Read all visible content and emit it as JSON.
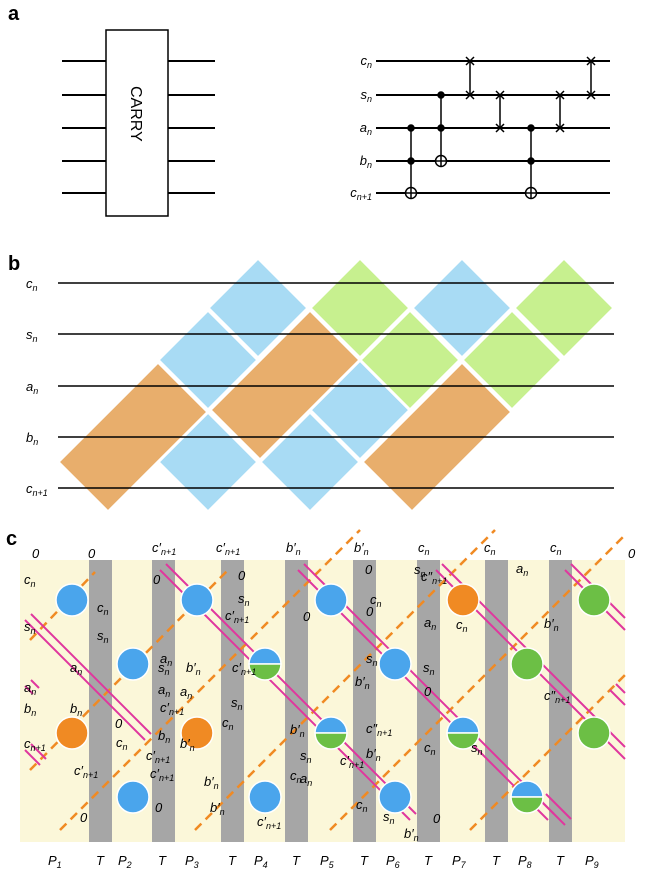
{
  "panels": {
    "a": {
      "label": "a",
      "gate_text": "CARRY",
      "wires": [
        {
          "main": "c",
          "sub": "n"
        },
        {
          "main": "s",
          "sub": "n"
        },
        {
          "main": "a",
          "sub": "n"
        },
        {
          "main": "b",
          "sub": "n"
        },
        {
          "main": "c",
          "sub": "n+1"
        }
      ]
    },
    "b": {
      "label": "b",
      "wires": [
        {
          "main": "c",
          "sub": "n"
        },
        {
          "main": "s",
          "sub": "n"
        },
        {
          "main": "a",
          "sub": "n"
        },
        {
          "main": "b",
          "sub": "n"
        },
        {
          "main": "c",
          "sub": "n+1"
        }
      ]
    },
    "c": {
      "label": "c",
      "stage_labels": [
        {
          "main": "P",
          "sub": "1"
        },
        {
          "main": "T",
          "sub": ""
        },
        {
          "main": "P",
          "sub": "2"
        },
        {
          "main": "T",
          "sub": ""
        },
        {
          "main": "P",
          "sub": "3"
        },
        {
          "main": "T",
          "sub": ""
        },
        {
          "main": "P",
          "sub": "4"
        },
        {
          "main": "T",
          "sub": ""
        },
        {
          "main": "P",
          "sub": "5"
        },
        {
          "main": "T",
          "sub": ""
        },
        {
          "main": "P",
          "sub": "6"
        },
        {
          "main": "T",
          "sub": ""
        },
        {
          "main": "P",
          "sub": "7"
        },
        {
          "main": "T",
          "sub": ""
        },
        {
          "main": "P",
          "sub": "8"
        },
        {
          "main": "T",
          "sub": ""
        },
        {
          "main": "P",
          "sub": "9"
        }
      ],
      "labels": [
        {
          "main": "0",
          "sub": ""
        },
        {
          "main": "0",
          "sub": ""
        },
        {
          "main": "c′",
          "sub": "n+1"
        },
        {
          "main": "c′",
          "sub": "n+1"
        },
        {
          "main": "b′",
          "sub": "n"
        },
        {
          "main": "b′",
          "sub": "n"
        },
        {
          "main": "c",
          "sub": "n"
        },
        {
          "main": "c",
          "sub": "n"
        },
        {
          "main": "c",
          "sub": "n"
        },
        {
          "main": "0",
          "sub": ""
        },
        {
          "main": "c",
          "sub": "n"
        },
        {
          "main": "s",
          "sub": "n"
        },
        {
          "main": "a",
          "sub": "n"
        },
        {
          "main": "b",
          "sub": "n"
        },
        {
          "main": "c",
          "sub": "n+1"
        },
        {
          "main": "c",
          "sub": "n"
        },
        {
          "main": "s",
          "sub": "n"
        },
        {
          "main": "a",
          "sub": "n"
        },
        {
          "main": "b",
          "sub": "n"
        },
        {
          "main": "c′",
          "sub": "n+1"
        },
        {
          "main": "0",
          "sub": ""
        },
        {
          "main": "0",
          "sub": ""
        },
        {
          "main": "s",
          "sub": "n"
        },
        {
          "main": "a",
          "sub": "n"
        },
        {
          "main": "b",
          "sub": "n"
        },
        {
          "main": "c′",
          "sub": "n+1"
        },
        {
          "main": "0",
          "sub": ""
        },
        {
          "main": "0",
          "sub": ""
        },
        {
          "main": "s",
          "sub": "n"
        },
        {
          "main": "a",
          "sub": "n"
        },
        {
          "main": "b′",
          "sub": "n"
        },
        {
          "main": "c′",
          "sub": "n+1"
        },
        {
          "main": "0",
          "sub": ""
        },
        {
          "main": "c′",
          "sub": "n+1"
        },
        {
          "main": "c",
          "sub": "n"
        },
        {
          "main": "a",
          "sub": "n"
        },
        {
          "main": "b′",
          "sub": "n"
        },
        {
          "main": "c′",
          "sub": "n+1"
        },
        {
          "main": "c′",
          "sub": "n+1"
        },
        {
          "main": "s",
          "sub": "n"
        },
        {
          "main": "c",
          "sub": "n"
        },
        {
          "main": "b′",
          "sub": "n"
        },
        {
          "main": "b′",
          "sub": "n"
        },
        {
          "main": "c′",
          "sub": "n+1"
        },
        {
          "main": "0",
          "sub": ""
        },
        {
          "main": "s",
          "sub": "n"
        },
        {
          "main": "a",
          "sub": "n"
        },
        {
          "main": "c",
          "sub": "n"
        },
        {
          "main": "b′",
          "sub": "n"
        },
        {
          "main": "c′",
          "sub": "n+1"
        },
        {
          "main": "0",
          "sub": ""
        },
        {
          "main": "s",
          "sub": "n"
        },
        {
          "main": "c",
          "sub": "n"
        },
        {
          "main": "b′",
          "sub": "n"
        },
        {
          "main": "c″",
          "sub": "n+1"
        },
        {
          "main": "b′",
          "sub": "n"
        },
        {
          "main": "0",
          "sub": ""
        },
        {
          "main": "s",
          "sub": "n"
        },
        {
          "main": "c",
          "sub": "n"
        },
        {
          "main": "s",
          "sub": "n"
        },
        {
          "main": "0",
          "sub": ""
        },
        {
          "main": "b′",
          "sub": "n"
        },
        {
          "main": "c″",
          "sub": "n+1"
        },
        {
          "main": "a",
          "sub": "n"
        },
        {
          "main": "c",
          "sub": "n"
        },
        {
          "main": "s",
          "sub": "n"
        },
        {
          "main": "0",
          "sub": ""
        },
        {
          "main": "c",
          "sub": "n"
        },
        {
          "main": "s",
          "sub": "n"
        },
        {
          "main": "a",
          "sub": "n"
        },
        {
          "main": "b′",
          "sub": "n"
        },
        {
          "main": "c″",
          "sub": "n+1"
        }
      ]
    }
  },
  "colors": {
    "blue": "#4aa5ec",
    "green": "#6cbf45",
    "orange": "#f08a23",
    "light_blue": "#a8dbf4",
    "light_green": "#c7f08f",
    "light_orange": "#e8ae6c",
    "cream": "#fbf7d9",
    "gray": "#a6a6a6",
    "magenta": "#e0379e"
  }
}
